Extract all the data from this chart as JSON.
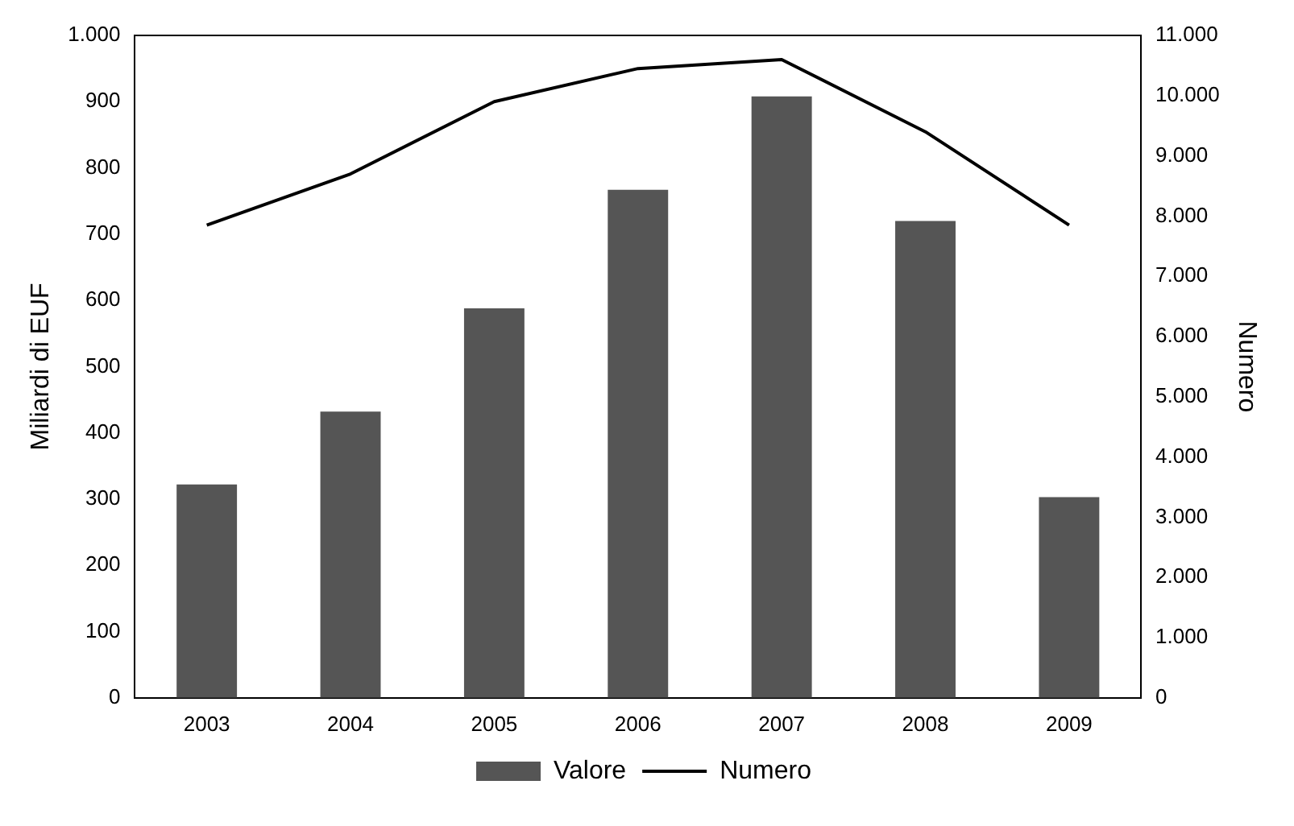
{
  "chart_data": {
    "type": "bar",
    "categories": [
      "2003",
      "2004",
      "2005",
      "2006",
      "2007",
      "2008",
      "2009"
    ],
    "series": [
      {
        "name": "Valore",
        "color": "#555555",
        "values": [
          322,
          432,
          588,
          767,
          908,
          720,
          303
        ]
      },
      {
        "name": "Numero",
        "type": "line",
        "axis": "y2",
        "color": "#000000",
        "values": [
          7850,
          8700,
          9900,
          10450,
          10600,
          9400,
          7850
        ]
      }
    ],
    "ylabel": "Miliardi di EUF",
    "y2label": "Numero",
    "ylim": [
      0,
      1000
    ],
    "yticks": [
      0,
      100,
      200,
      300,
      400,
      500,
      600,
      700,
      800,
      900,
      {
        "value": 1000,
        "label": "1.000"
      }
    ],
    "y2lim": [
      0,
      11000
    ],
    "y2ticks": [
      0,
      {
        "value": 1000,
        "label": "1.000"
      },
      {
        "value": 2000,
        "label": "2.000"
      },
      {
        "value": 3000,
        "label": "3.000"
      },
      {
        "value": 4000,
        "label": "4.000"
      },
      {
        "value": 5000,
        "label": "5.000"
      },
      {
        "value": 6000,
        "label": "6.000"
      },
      {
        "value": 7000,
        "label": "7.000"
      },
      {
        "value": 8000,
        "label": "8.000"
      },
      {
        "value": 9000,
        "label": "9.000"
      },
      {
        "value": 10000,
        "label": "10.000"
      },
      {
        "value": 11000,
        "label": "11.000"
      }
    ],
    "grid": false,
    "legend": "bottom",
    "marker": "none",
    "line_style": "solid"
  }
}
